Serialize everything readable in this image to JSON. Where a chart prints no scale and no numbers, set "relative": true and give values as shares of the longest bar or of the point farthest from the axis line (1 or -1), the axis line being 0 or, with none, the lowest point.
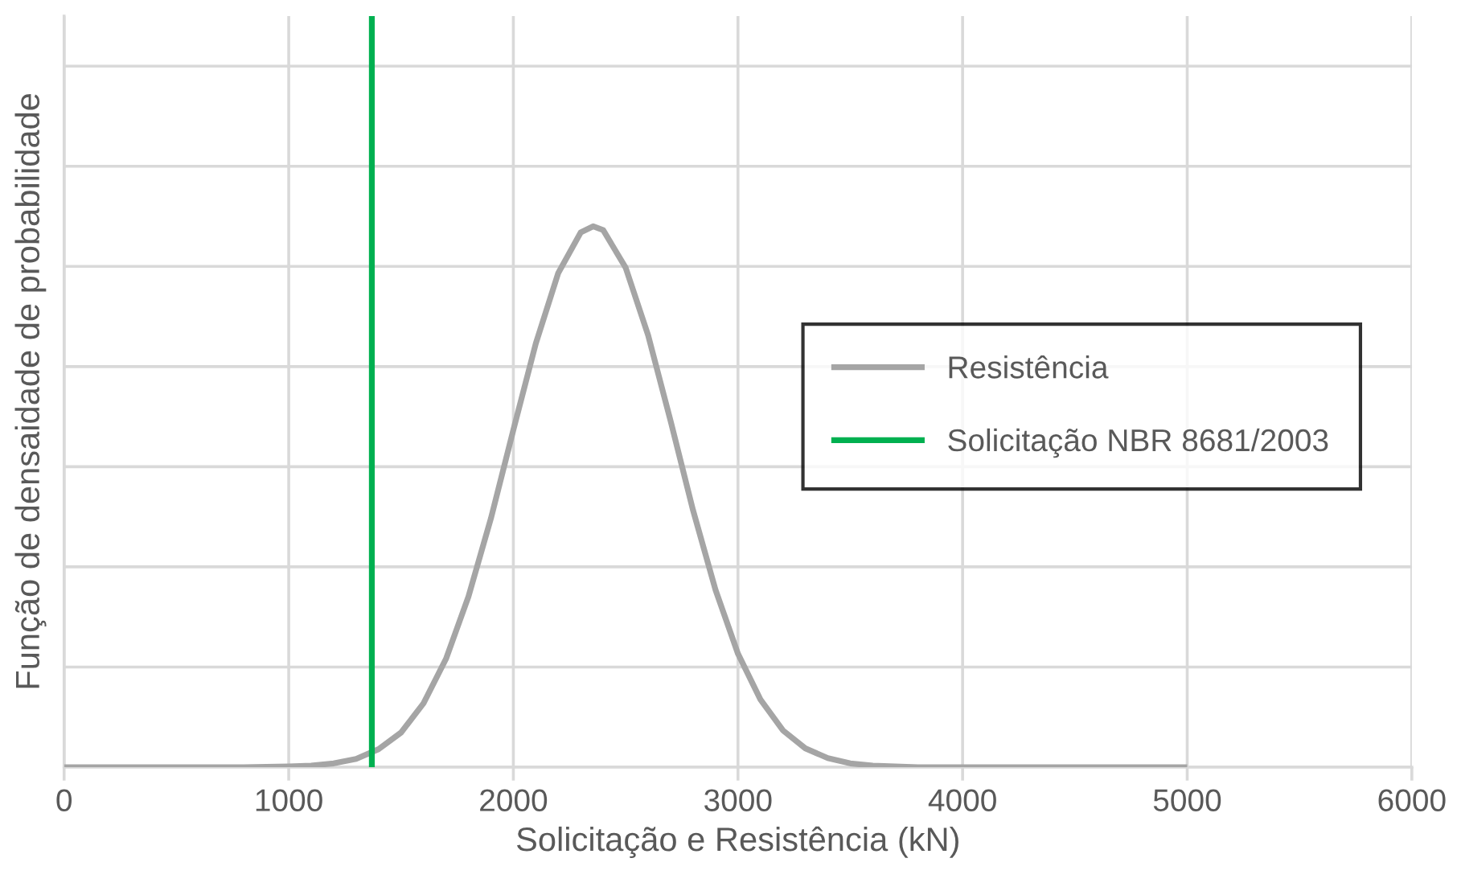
{
  "chart_data": {
    "type": "line",
    "xlabel": "Solicitação e Resistência (kN)",
    "ylabel": "Função de densaidade de probabilidade",
    "relative": true,
    "series": [
      {
        "name": "Resistência",
        "color": "#a5a5a5",
        "x": [
          0,
          800,
          1000,
          1100,
          1200,
          1300,
          1400,
          1500,
          1600,
          1700,
          1800,
          1900,
          2000,
          2100,
          2200,
          2300,
          2355,
          2400,
          2500,
          2600,
          2700,
          2800,
          2900,
          3000,
          3100,
          3200,
          3300,
          3400,
          3500,
          3600,
          3800,
          5000
        ],
        "values": [
          0,
          0,
          0.001,
          0.002,
          0.005,
          0.011,
          0.024,
          0.046,
          0.085,
          0.144,
          0.227,
          0.331,
          0.449,
          0.564,
          0.658,
          0.712,
          0.72,
          0.715,
          0.665,
          0.575,
          0.461,
          0.342,
          0.236,
          0.151,
          0.09,
          0.049,
          0.025,
          0.012,
          0.005,
          0.002,
          0,
          0
        ]
      },
      {
        "name": "Solicitação NBR 8681/2003",
        "color": "#00b050",
        "x": [
          1370,
          1370
        ],
        "values": [
          0,
          1
        ]
      }
    ],
    "xlim": [
      0,
      6000
    ],
    "xticks": [
      0,
      1000,
      2000,
      3000,
      4000,
      5000,
      6000
    ],
    "grid": true,
    "legend": "right",
    "marker": "none",
    "line_style": "solid"
  }
}
